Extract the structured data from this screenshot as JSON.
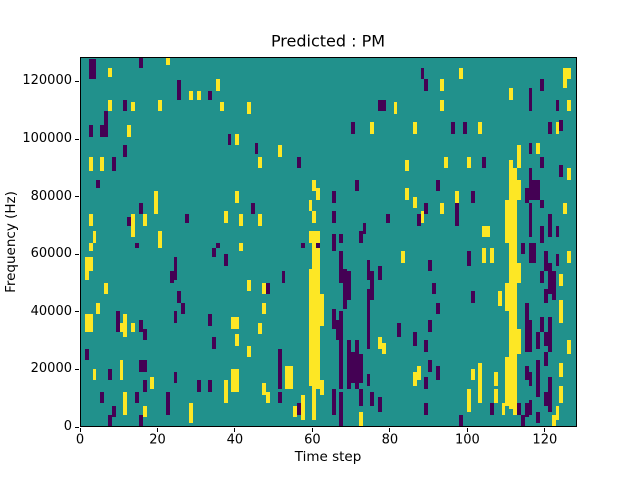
{
  "figure": {
    "title": "Predicted : PM",
    "xlabel": "Time step",
    "ylabel": "Frequency (Hz)",
    "colors": {
      "background": "#ffffff",
      "cmap_low": "#440154",
      "cmap_mid": "#21918c",
      "cmap_high": "#fde725",
      "spine": "#000000",
      "text": "#000000"
    }
  },
  "axes": {
    "x_ticks": [
      0,
      20,
      40,
      60,
      80,
      100,
      120
    ],
    "y_ticks": [
      0,
      20000,
      40000,
      60000,
      80000,
      100000,
      120000
    ]
  },
  "chart_data": {
    "type": "heatmap",
    "title": "Predicted : PM",
    "xlabel": "Time step",
    "ylabel": "Frequency (Hz)",
    "x_range": [
      0,
      128.3
    ],
    "y_range": [
      0,
      128500
    ],
    "grid": false,
    "legend": "none",
    "colormap": "viridis",
    "value_legend": {
      "0": "#440154",
      "1": "#fde725",
      "background": "#21918c"
    },
    "cell_format": [
      "t_time_step",
      "b_bottom_kHz",
      "h_height_kHz",
      "value(0=purple,1=yellow)",
      "w_width_steps_optional"
    ],
    "cells": [
      [
        2,
        121,
        7,
        0,
        2
      ],
      [
        15,
        125,
        4,
        0
      ],
      [
        25,
        114,
        7,
        0
      ],
      [
        33,
        114,
        3,
        0
      ],
      [
        11,
        110,
        4,
        0
      ],
      [
        6,
        101,
        9,
        0
      ],
      [
        2,
        101,
        4,
        0
      ],
      [
        5,
        101,
        4,
        0
      ],
      [
        11,
        94,
        4,
        0
      ],
      [
        8,
        89,
        5,
        0
      ],
      [
        4,
        83,
        3,
        0
      ],
      [
        15,
        74,
        4,
        0
      ],
      [
        12,
        70,
        3,
        0
      ],
      [
        27,
        71,
        3,
        0
      ],
      [
        38,
        98,
        4,
        0
      ],
      [
        7,
        122,
        3,
        1
      ],
      [
        22,
        126,
        3,
        1
      ],
      [
        28,
        114,
        3,
        1
      ],
      [
        30,
        114,
        3,
        1
      ],
      [
        35,
        117,
        4,
        1
      ],
      [
        36,
        110,
        3,
        1
      ],
      [
        7,
        110,
        4,
        1
      ],
      [
        13,
        110,
        3,
        1
      ],
      [
        20,
        110,
        4,
        1
      ],
      [
        12,
        101,
        4,
        1
      ],
      [
        40,
        98,
        4,
        1
      ],
      [
        2,
        89,
        5,
        1
      ],
      [
        5,
        89,
        5,
        1
      ],
      [
        19,
        74,
        8,
        1
      ],
      [
        40,
        78,
        4,
        1
      ],
      [
        13,
        70,
        4,
        1
      ],
      [
        16,
        70,
        4,
        1
      ],
      [
        2,
        70,
        4,
        1
      ],
      [
        37,
        71,
        4,
        1
      ],
      [
        41,
        70,
        4,
        1
      ],
      [
        3,
        64,
        4,
        1
      ],
      [
        13,
        66,
        4,
        1
      ],
      [
        20,
        64,
        4,
        1
      ],
      [
        43,
        109,
        4,
        1
      ],
      [
        81,
        109,
        4,
        1
      ],
      [
        75,
        102,
        4,
        1
      ],
      [
        51,
        94,
        4,
        1
      ],
      [
        46,
        90,
        4,
        1
      ],
      [
        60,
        82,
        4,
        1
      ],
      [
        61,
        79,
        4,
        1
      ],
      [
        59,
        75,
        4,
        1
      ],
      [
        60,
        71,
        4,
        1
      ],
      [
        46,
        70,
        4,
        1
      ],
      [
        84,
        89,
        4,
        1
      ],
      [
        84,
        79,
        4,
        1
      ],
      [
        59,
        64,
        4,
        1,
        3
      ],
      [
        77,
        110,
        4,
        0,
        2
      ],
      [
        70,
        102,
        4,
        0
      ],
      [
        45,
        95,
        4,
        0
      ],
      [
        56,
        90,
        4,
        0
      ],
      [
        71,
        82,
        4,
        0
      ],
      [
        65,
        78,
        4,
        0
      ],
      [
        44,
        74,
        4,
        0
      ],
      [
        65,
        71,
        4,
        0
      ],
      [
        79,
        71,
        3,
        0
      ],
      [
        73,
        67,
        4,
        0
      ],
      [
        72,
        64,
        4,
        0
      ],
      [
        65,
        64,
        3,
        0
      ],
      [
        67,
        64,
        3,
        0
      ],
      [
        98,
        121,
        4,
        1
      ],
      [
        93,
        117,
        4,
        1
      ],
      [
        93,
        110,
        4,
        1
      ],
      [
        111,
        114,
        4,
        1
      ],
      [
        125,
        118,
        7,
        1
      ],
      [
        126,
        121,
        4,
        1
      ],
      [
        126,
        110,
        4,
        1
      ],
      [
        86,
        102,
        4,
        1
      ],
      [
        103,
        102,
        4,
        1
      ],
      [
        123,
        102,
        4,
        1
      ],
      [
        113,
        90,
        8,
        1
      ],
      [
        118,
        95,
        4,
        1
      ],
      [
        100,
        90,
        4,
        1
      ],
      [
        94,
        90,
        4,
        1
      ],
      [
        126,
        86,
        4,
        1
      ],
      [
        110,
        64,
        15,
        1
      ],
      [
        111,
        64,
        29,
        1
      ],
      [
        112,
        64,
        26,
        1
      ],
      [
        112,
        79,
        7,
        1,
        2
      ],
      [
        97,
        78,
        4,
        1
      ],
      [
        93,
        74,
        4,
        1
      ],
      [
        88,
        71,
        4,
        1
      ],
      [
        86,
        76,
        4,
        1
      ],
      [
        104,
        66,
        4,
        1,
        2
      ],
      [
        125,
        74,
        4,
        1
      ],
      [
        88,
        121,
        4,
        0
      ],
      [
        89,
        117,
        4,
        0
      ],
      [
        119,
        117,
        4,
        0
      ],
      [
        116,
        114,
        4,
        0
      ],
      [
        116,
        110,
        4,
        0
      ],
      [
        123,
        110,
        4,
        0
      ],
      [
        96,
        102,
        4,
        0
      ],
      [
        99,
        102,
        4,
        0
      ],
      [
        121,
        102,
        4,
        0
      ],
      [
        124,
        103,
        4,
        0
      ],
      [
        116,
        95,
        4,
        0
      ],
      [
        119,
        90,
        4,
        0
      ],
      [
        104,
        90,
        4,
        0
      ],
      [
        124,
        87,
        4,
        0
      ],
      [
        92,
        82,
        4,
        0
      ],
      [
        116,
        86,
        4,
        0
      ],
      [
        116,
        79,
        7,
        0,
        3
      ],
      [
        115,
        78,
        5,
        0
      ],
      [
        101,
        78,
        4,
        0
      ],
      [
        97,
        74,
        4,
        0
      ],
      [
        89,
        74,
        4,
        0
      ],
      [
        87,
        70,
        4,
        0
      ],
      [
        97,
        70,
        4,
        0
      ],
      [
        116,
        70,
        8,
        0
      ],
      [
        119,
        64,
        6,
        0
      ],
      [
        121,
        66,
        8,
        0
      ],
      [
        123,
        66,
        4,
        0
      ],
      [
        119,
        76,
        3,
        0
      ],
      [
        116,
        66,
        4,
        0
      ],
      [
        2,
        61,
        3,
        1
      ],
      [
        20,
        62,
        2,
        1
      ],
      [
        41,
        61,
        3,
        1
      ],
      [
        1,
        51,
        8,
        1
      ],
      [
        2,
        54,
        5,
        1
      ],
      [
        6,
        46,
        4,
        1
      ],
      [
        4,
        39,
        4,
        1
      ],
      [
        1,
        33,
        6,
        1,
        2
      ],
      [
        10,
        33,
        3,
        1
      ],
      [
        11,
        31,
        8,
        1
      ],
      [
        13,
        33,
        3,
        1
      ],
      [
        39,
        34,
        4,
        1,
        2
      ],
      [
        40,
        28,
        4,
        1
      ],
      [
        3,
        16,
        4,
        1
      ],
      [
        10,
        16,
        7,
        1
      ],
      [
        18,
        13,
        4,
        1
      ],
      [
        37,
        8,
        8,
        1
      ],
      [
        39,
        12,
        8,
        1,
        2
      ],
      [
        11,
        4,
        8,
        1
      ],
      [
        16,
        3,
        4,
        1
      ],
      [
        28,
        1,
        7,
        1
      ],
      [
        14,
        62,
        2,
        0
      ],
      [
        35,
        62,
        2,
        0
      ],
      [
        34,
        59,
        3,
        0
      ],
      [
        37,
        56,
        4,
        0
      ],
      [
        24,
        51,
        8,
        0
      ],
      [
        23,
        50,
        4,
        0
      ],
      [
        25,
        43,
        4,
        0
      ],
      [
        26,
        39,
        4,
        0
      ],
      [
        24,
        36,
        4,
        0
      ],
      [
        9,
        33,
        7,
        0
      ],
      [
        15,
        33,
        4,
        0
      ],
      [
        16,
        30,
        4,
        0
      ],
      [
        33,
        35,
        4,
        0
      ],
      [
        34,
        27,
        4,
        0
      ],
      [
        1,
        23,
        4,
        0
      ],
      [
        7,
        16,
        4,
        0
      ],
      [
        15,
        19,
        4,
        0,
        2
      ],
      [
        16,
        12,
        4,
        0
      ],
      [
        24,
        15,
        4,
        0
      ],
      [
        30,
        12,
        4,
        0
      ],
      [
        33,
        12,
        4,
        0
      ],
      [
        5,
        8,
        4,
        0
      ],
      [
        8,
        3,
        4,
        0
      ],
      [
        14,
        8,
        4,
        0
      ],
      [
        22,
        4,
        8,
        0
      ],
      [
        7,
        0,
        4,
        0
      ],
      [
        15,
        0,
        4,
        0
      ],
      [
        59,
        14,
        41,
        1
      ],
      [
        60,
        2,
        62,
        1
      ],
      [
        61,
        13,
        49,
        1
      ],
      [
        62,
        35,
        11,
        1
      ],
      [
        62,
        11,
        5,
        1
      ],
      [
        43,
        47,
        4,
        1
      ],
      [
        47,
        46,
        4,
        1
      ],
      [
        47,
        39,
        4,
        1
      ],
      [
        46,
        32,
        4,
        1
      ],
      [
        43,
        24,
        4,
        1
      ],
      [
        53,
        13,
        8,
        1,
        2
      ],
      [
        47,
        11,
        4,
        1
      ],
      [
        48,
        8,
        4,
        1
      ],
      [
        55,
        3,
        4,
        1
      ],
      [
        57,
        2,
        9,
        1
      ],
      [
        72,
        0,
        5,
        1
      ],
      [
        77,
        27,
        4,
        1
      ],
      [
        78,
        25,
        4,
        1
      ],
      [
        83,
        57,
        4,
        1
      ],
      [
        65,
        61,
        3,
        0
      ],
      [
        67,
        50,
        11,
        0
      ],
      [
        68,
        41,
        14,
        0
      ],
      [
        69,
        44,
        10,
        0
      ],
      [
        65,
        34,
        7,
        0
      ],
      [
        66,
        30,
        7,
        0
      ],
      [
        67,
        13,
        27,
        0
      ],
      [
        69,
        13,
        17,
        0
      ],
      [
        70,
        15,
        11,
        0
      ],
      [
        71,
        13,
        17,
        0
      ],
      [
        72,
        15,
        10,
        0
      ],
      [
        65,
        4,
        9,
        0
      ],
      [
        67,
        0,
        12,
        0
      ],
      [
        74,
        51,
        7,
        0
      ],
      [
        75,
        44,
        10,
        0
      ],
      [
        74,
        27,
        21,
        0
      ],
      [
        77,
        51,
        5,
        0
      ],
      [
        74,
        14,
        4,
        0
      ],
      [
        75,
        7,
        5,
        0
      ],
      [
        77,
        5,
        5,
        0
      ],
      [
        72,
        7,
        6,
        0
      ],
      [
        82,
        31,
        5,
        0
      ],
      [
        52,
        50,
        4,
        0
      ],
      [
        48,
        46,
        4,
        0
      ],
      [
        51,
        13,
        14,
        0
      ],
      [
        51,
        8,
        4,
        0
      ],
      [
        56,
        4,
        4,
        0
      ],
      [
        57,
        62,
        2,
        0
      ],
      [
        61,
        62,
        2,
        0
      ],
      [
        110,
        40,
        10,
        1
      ],
      [
        110,
        7,
        17,
        1
      ],
      [
        111,
        6,
        58,
        1
      ],
      [
        112,
        4,
        60,
        1
      ],
      [
        113,
        50,
        7,
        1
      ],
      [
        113,
        25,
        9,
        1
      ],
      [
        108,
        42,
        5,
        1
      ],
      [
        109,
        4,
        4,
        1
      ],
      [
        104,
        57,
        5,
        1
      ],
      [
        106,
        57,
        5,
        1
      ],
      [
        87,
        16,
        5,
        1
      ],
      [
        86,
        14,
        5,
        1
      ],
      [
        101,
        16,
        4,
        1
      ],
      [
        103,
        13,
        9,
        1
      ],
      [
        107,
        14,
        5,
        1
      ],
      [
        100,
        5,
        8,
        1
      ],
      [
        103,
        8,
        5,
        1
      ],
      [
        107,
        8,
        5,
        1
      ],
      [
        124,
        49,
        4,
        1
      ],
      [
        124,
        36,
        8,
        1
      ],
      [
        124,
        17,
        5,
        1
      ],
      [
        124,
        8,
        6,
        1
      ],
      [
        126,
        25,
        5,
        1
      ],
      [
        126,
        57,
        4,
        1
      ],
      [
        123,
        2,
        5,
        1
      ],
      [
        122,
        0,
        4,
        1
      ],
      [
        114,
        60,
        4,
        0
      ],
      [
        116,
        57,
        7,
        0,
        2
      ],
      [
        120,
        54,
        7,
        0
      ],
      [
        121,
        46,
        11,
        0
      ],
      [
        123,
        56,
        4,
        0
      ],
      [
        119,
        50,
        4,
        0
      ],
      [
        120,
        43,
        5,
        0
      ],
      [
        122,
        44,
        10,
        0
      ],
      [
        115,
        26,
        17,
        0
      ],
      [
        116,
        26,
        11,
        0
      ],
      [
        118,
        27,
        6,
        0
      ],
      [
        119,
        33,
        5,
        0
      ],
      [
        120,
        28,
        5,
        0
      ],
      [
        121,
        26,
        12,
        0
      ],
      [
        120,
        21,
        5,
        0
      ],
      [
        115,
        16,
        5,
        0
      ],
      [
        116,
        14,
        5,
        0
      ],
      [
        118,
        10,
        13,
        0
      ],
      [
        120,
        7,
        5,
        0
      ],
      [
        121,
        5,
        12,
        0
      ],
      [
        116,
        4,
        5,
        0
      ],
      [
        115,
        3,
        5,
        0
      ],
      [
        118,
        1,
        4,
        0
      ],
      [
        114,
        0,
        4,
        0
      ],
      [
        113,
        4,
        4,
        0
      ],
      [
        90,
        54,
        4,
        0
      ],
      [
        100,
        56,
        5,
        0
      ],
      [
        91,
        46,
        4,
        0
      ],
      [
        101,
        43,
        4,
        0
      ],
      [
        92,
        39,
        4,
        0
      ],
      [
        90,
        33,
        4,
        0
      ],
      [
        86,
        28,
        5,
        0
      ],
      [
        89,
        26,
        4,
        0
      ],
      [
        90,
        19,
        4,
        0
      ],
      [
        92,
        16,
        5,
        0
      ],
      [
        89,
        13,
        4,
        0
      ],
      [
        89,
        4,
        4,
        0
      ],
      [
        98,
        0,
        4,
        0
      ],
      [
        106,
        4,
        4,
        0
      ]
    ]
  }
}
